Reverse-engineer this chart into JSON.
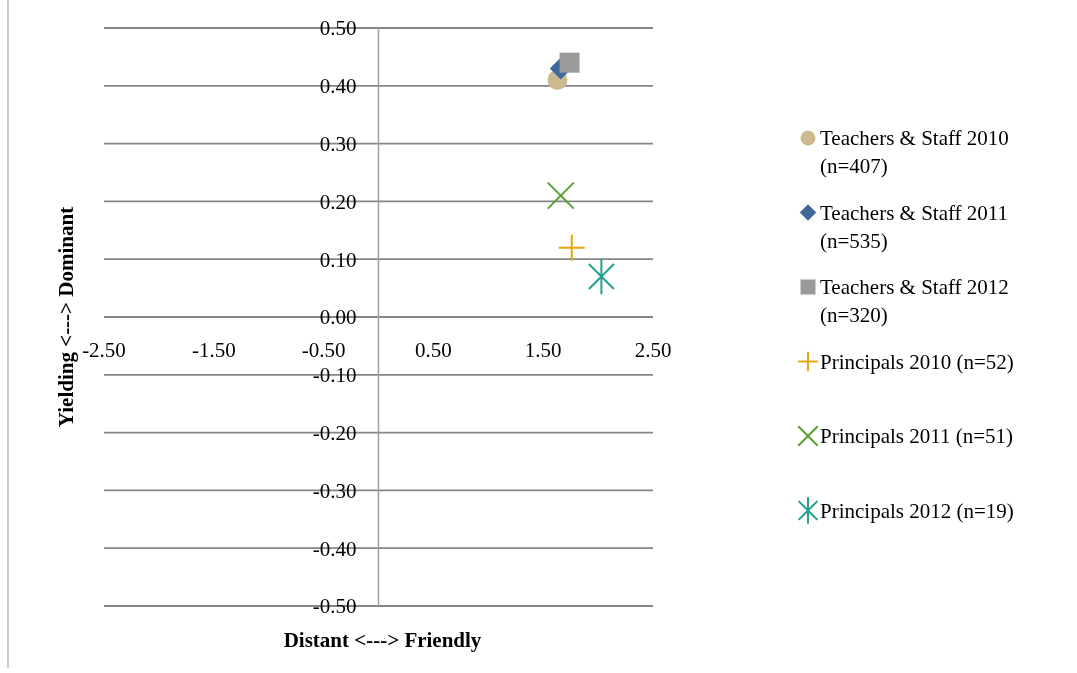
{
  "chart_data": {
    "type": "scatter",
    "xlabel": "Distant <---> Friendly",
    "ylabel": "Yielding <---> Dominant",
    "xlim": [
      -2.5,
      2.5
    ],
    "ylim": [
      -0.5,
      0.5
    ],
    "xticks": [
      {
        "value": -2.5,
        "label": "-2.50"
      },
      {
        "value": -1.5,
        "label": "-1.50"
      },
      {
        "value": -0.5,
        "label": "-0.50"
      },
      {
        "value": 0.5,
        "label": "0.50"
      },
      {
        "value": 1.5,
        "label": "1.50"
      },
      {
        "value": 2.5,
        "label": "2.50"
      }
    ],
    "yticks": [
      {
        "value": 0.5,
        "label": "0.50"
      },
      {
        "value": 0.4,
        "label": "0.40"
      },
      {
        "value": 0.3,
        "label": "0.30"
      },
      {
        "value": 0.2,
        "label": "0.20"
      },
      {
        "value": 0.1,
        "label": "0.10"
      },
      {
        "value": 0,
        "label": "0.00"
      },
      {
        "value": -0.1,
        "label": "-0.10"
      },
      {
        "value": -0.2,
        "label": "-0.20"
      },
      {
        "value": -0.3,
        "label": "-0.30"
      },
      {
        "value": -0.4,
        "label": "-0.40"
      },
      {
        "value": -0.5,
        "label": "-0.50"
      }
    ],
    "grid": "y",
    "legend": "right",
    "series": [
      {
        "name": "Teachers & Staff 2010 (n=407)",
        "color": "#cdb98f",
        "marker": "circle",
        "x": [
          1.63
        ],
        "values": [
          0.41
        ]
      },
      {
        "name": "Teachers & Staff 2011 (n=535)",
        "color": "#41689a",
        "marker": "diamond",
        "x": [
          1.66
        ],
        "values": [
          0.43
        ]
      },
      {
        "name": "Teachers & Staff 2012 (n=320)",
        "color": "#9a9a9a",
        "marker": "square",
        "x": [
          1.74
        ],
        "values": [
          0.44
        ]
      },
      {
        "name": "Principals 2010 (n=52)",
        "color": "#e5a50d",
        "marker": "cross",
        "x": [
          1.76
        ],
        "values": [
          0.12
        ]
      },
      {
        "name": "Principals 2011 (n=51)",
        "color": "#5c9f35",
        "marker": "cross",
        "x": [
          1.66
        ],
        "values": [
          0.21
        ]
      },
      {
        "name": "Principals 2012 (n=19)",
        "color": "#21a08f",
        "marker": "star",
        "x": [
          2.03
        ],
        "values": [
          0.07
        ]
      }
    ]
  }
}
